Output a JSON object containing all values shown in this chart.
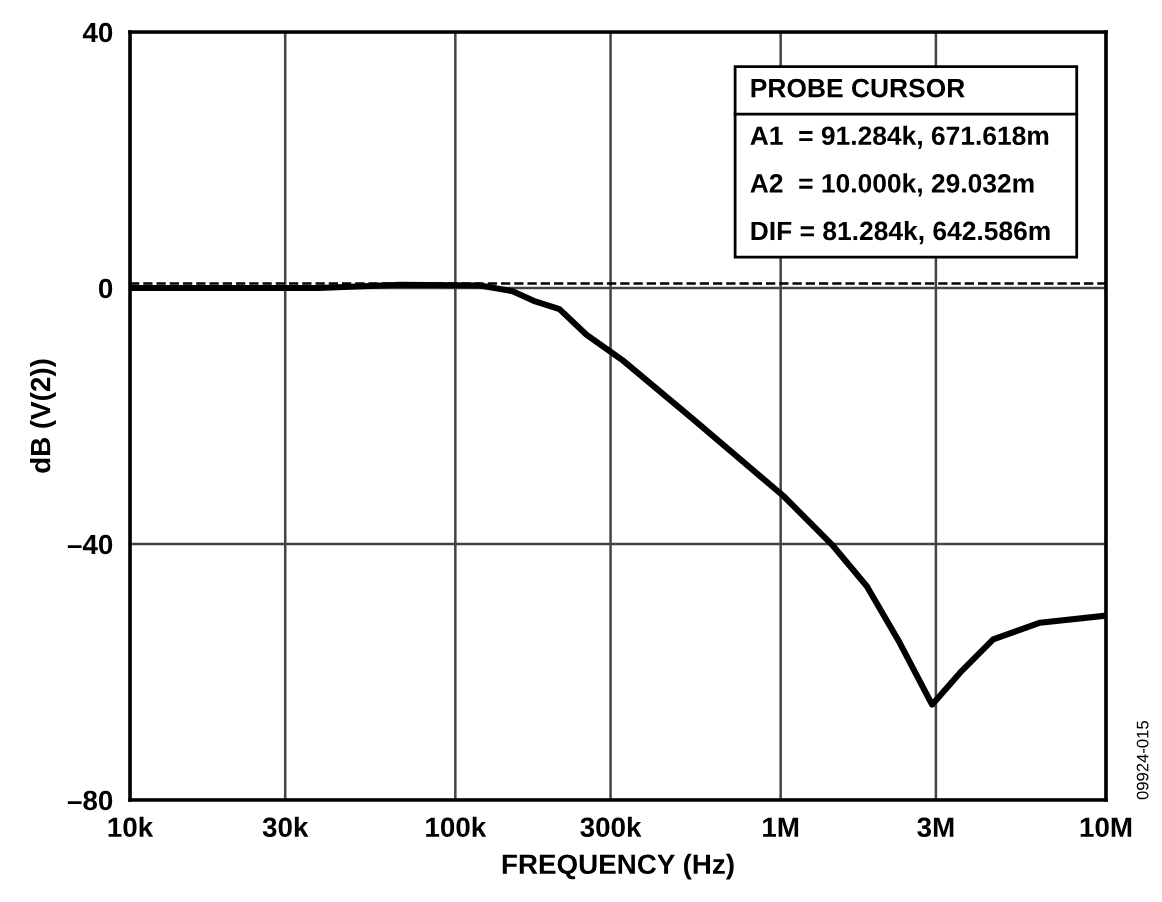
{
  "chart_data": {
    "type": "line",
    "xlabel": "FREQUENCY (Hz)",
    "ylabel": "dB (V(2))",
    "x": [
      10000,
      38000,
      68000,
      119000,
      150000,
      174000,
      209000,
      253000,
      325000,
      538000,
      1020000,
      1450000,
      1840000,
      2320000,
      2920000,
      3560000,
      4500000,
      6270000,
      9960000
    ],
    "series": [
      {
        "color": "#000000",
        "values": [
          0,
          0,
          0.5,
          0.4,
          -0.5,
          -2.0,
          -3.3,
          -7.3,
          -11.2,
          -20.5,
          -32.5,
          -40.3,
          -46.6,
          -55.4,
          -65.1,
          -60.1,
          -54.9,
          -52.3,
          -51.2
        ]
      }
    ],
    "log": "x",
    "xlim": [
      10000,
      10000000
    ],
    "xticks": [
      {
        "value": 10000,
        "label": "10k"
      },
      {
        "value": 30000,
        "label": "30k"
      },
      {
        "value": 100000,
        "label": "100k"
      },
      {
        "value": 300000,
        "label": "300k"
      },
      {
        "value": 1000000,
        "label": "1M"
      },
      {
        "value": 3000000,
        "label": "3M"
      },
      {
        "value": 10000000,
        "label": "10M"
      }
    ],
    "ylim": [
      -80,
      40
    ],
    "yticks": [
      {
        "value": -80,
        "label": "–80"
      },
      {
        "value": -40,
        "label": "–40"
      },
      0,
      40
    ],
    "grid": true,
    "legend": false,
    "marker": "none",
    "line_style": "solid",
    "ref_lines": [
      {
        "axis": "y",
        "value": 0.7,
        "line_style": "dashed",
        "color": "#000000"
      }
    ],
    "annotations": [
      "PROBE CURSOR",
      "A1  = 91.284k, 671.618m",
      "A2  = 10.000k, 29.032m",
      "DIF = 81.284k, 642.586m",
      "09924-015"
    ]
  }
}
